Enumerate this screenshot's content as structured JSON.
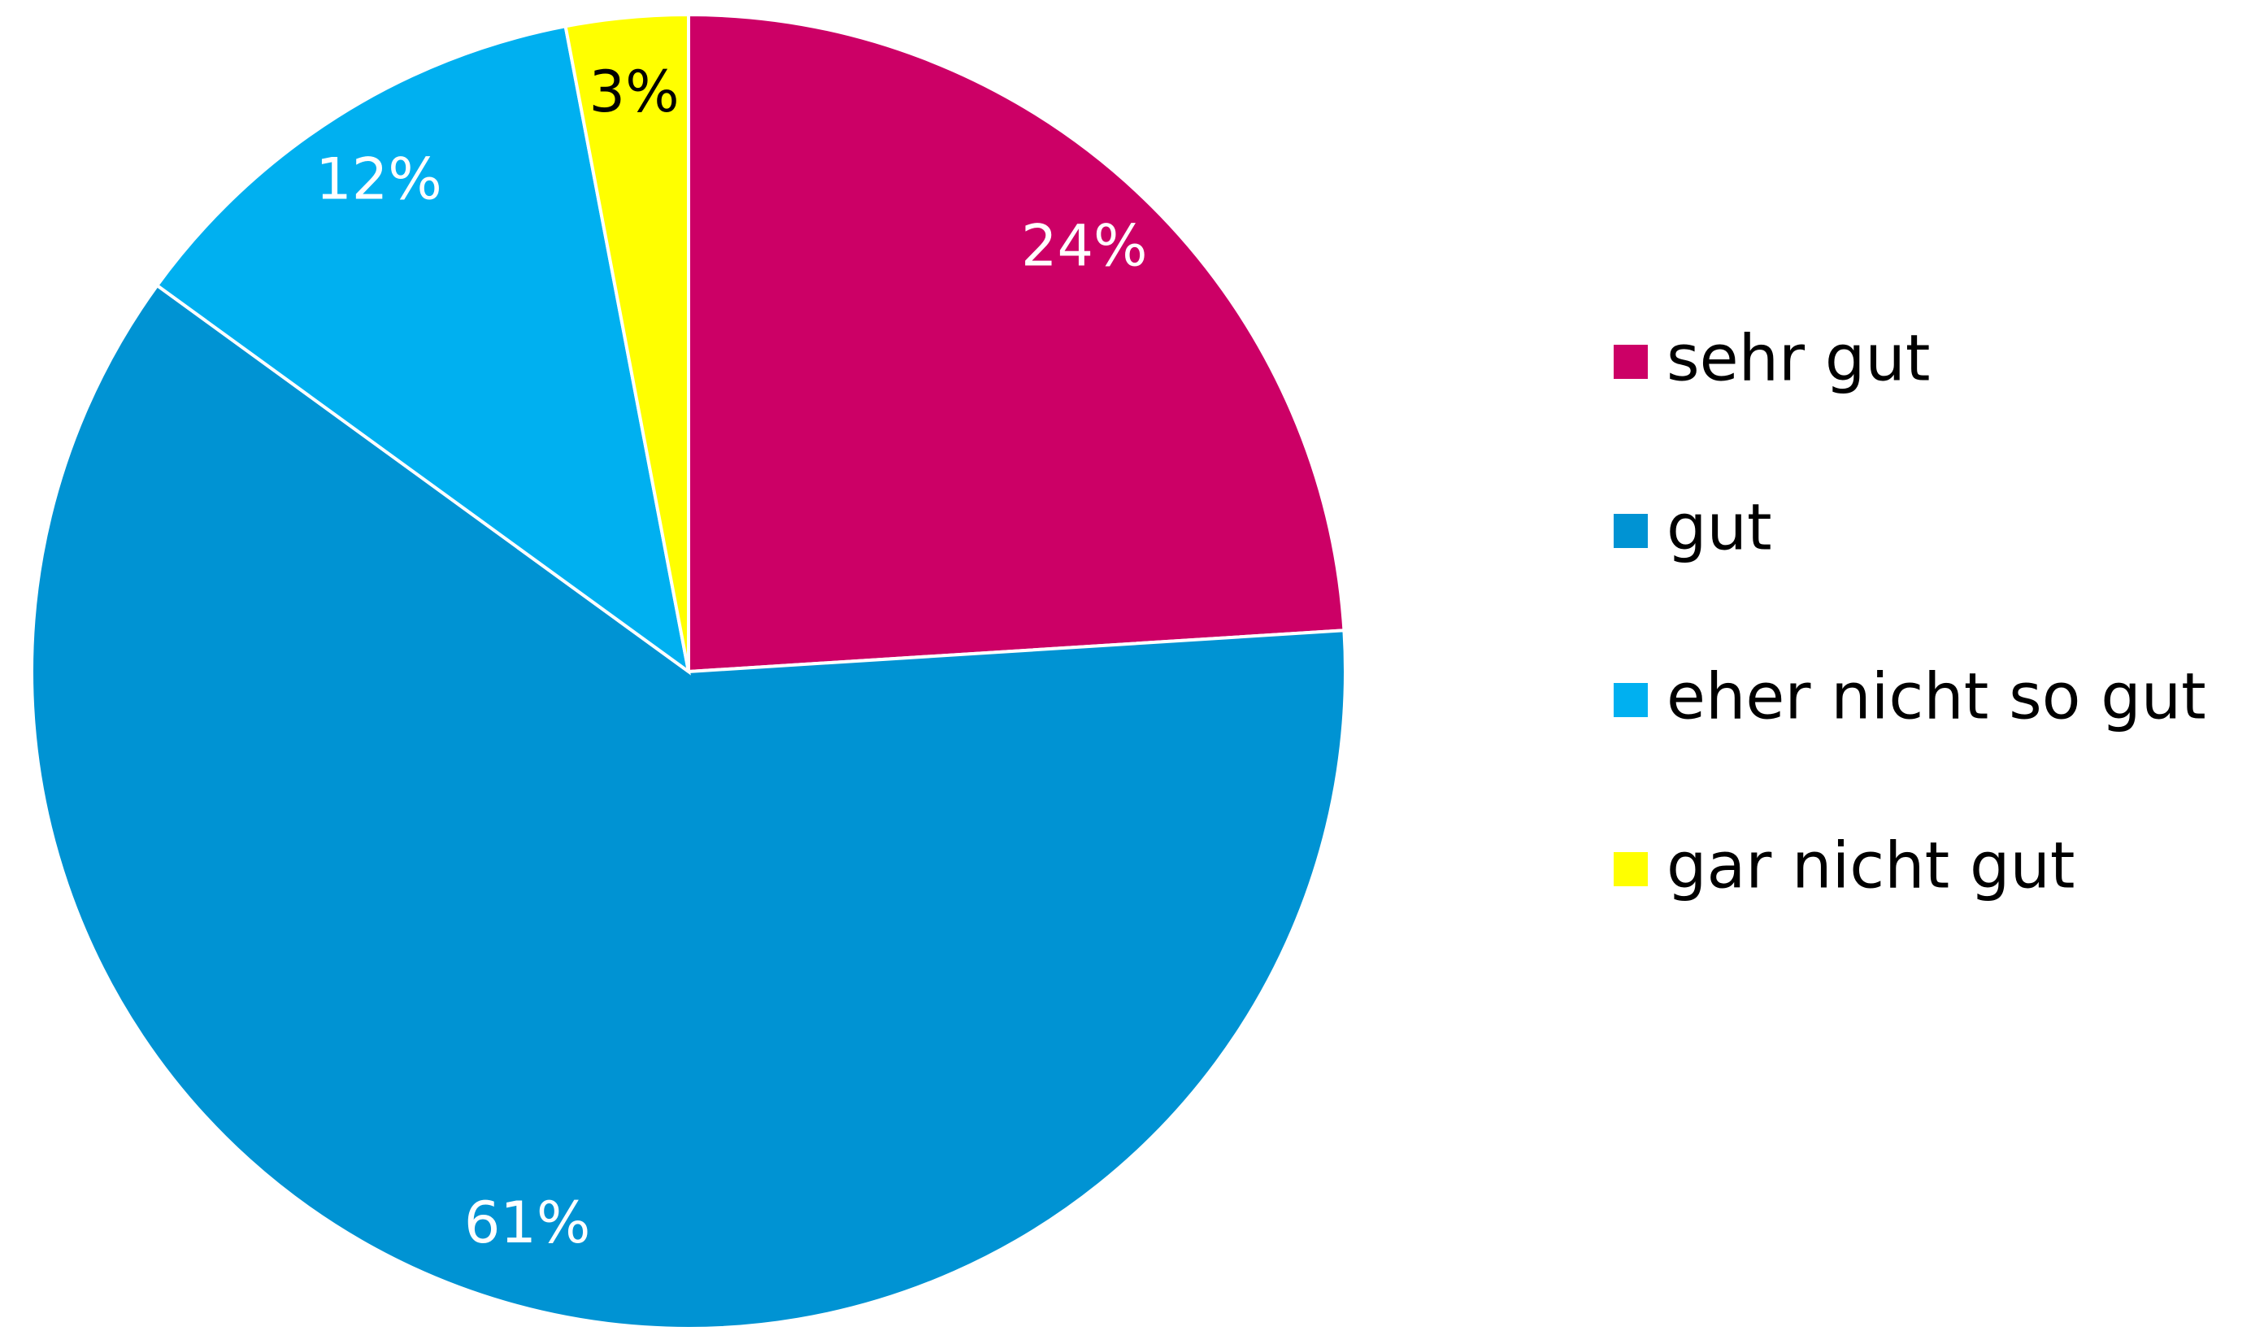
{
  "chart_data": {
    "type": "pie",
    "categories": [
      "sehr gut",
      "gut",
      "eher nicht so gut",
      "gar nicht gut"
    ],
    "values": [
      24,
      61,
      12,
      3
    ],
    "value_labels": [
      "24%",
      "61%",
      "12%",
      "3%"
    ],
    "colors": [
      "#cc0066",
      "#0093d3",
      "#00b0f0",
      "#ffff00"
    ],
    "label_colors": [
      "#ffffff",
      "#ffffff",
      "#ffffff",
      "#000000"
    ],
    "legend": "right"
  }
}
